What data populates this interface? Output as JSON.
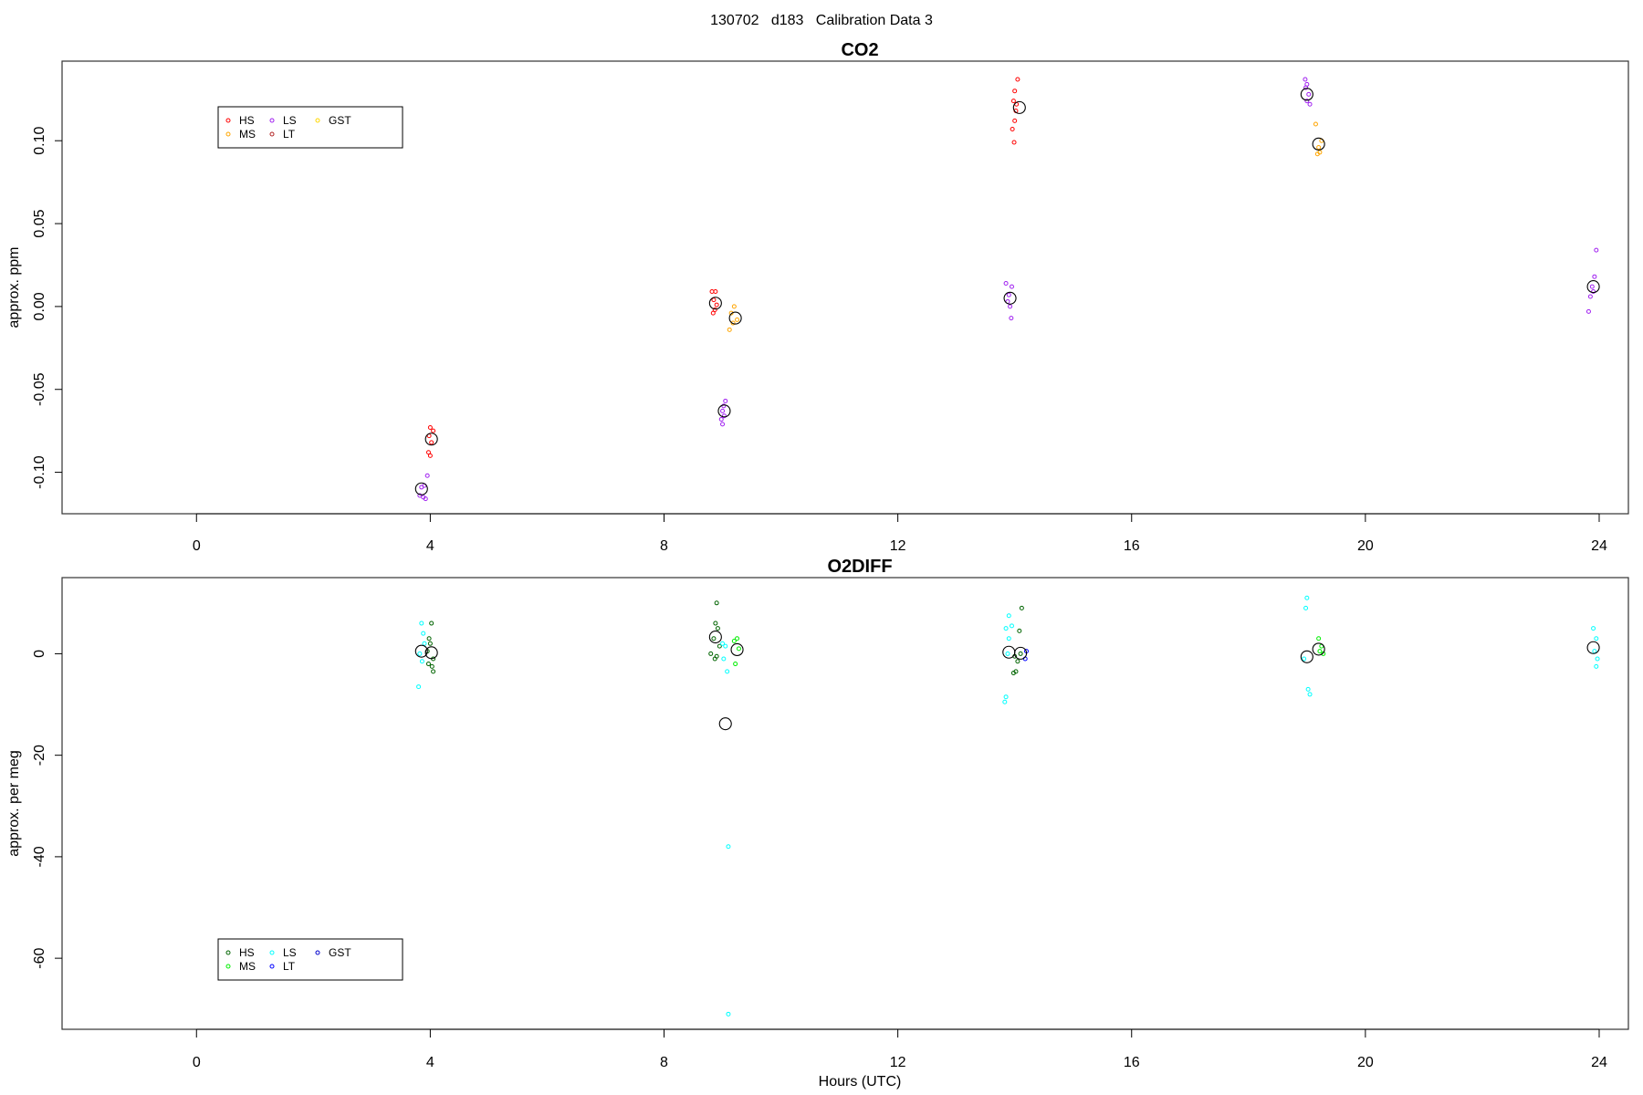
{
  "page_title": "130702   d183   Calibration Data 3",
  "chart_data": [
    {
      "type": "scatter",
      "title": "CO2",
      "xlabel": "",
      "ylabel": "approx. ppm",
      "xlim": [
        -2.3,
        24.5
      ],
      "ylim": [
        -0.125,
        0.148
      ],
      "xticks": [
        0,
        4,
        8,
        12,
        16,
        20,
        24
      ],
      "yticks": [
        -0.1,
        -0.05,
        0.0,
        0.05,
        0.1
      ],
      "ytick_labels": [
        "-0.10",
        "-0.05",
        "0.00",
        "0.05",
        "0.10"
      ],
      "legend_position": "top-left",
      "legend": [
        {
          "name": "HS",
          "color": "#ff0000"
        },
        {
          "name": "MS",
          "color": "#ffa500"
        },
        {
          "name": "LS",
          "color": "#a020f0"
        },
        {
          "name": "LT",
          "color": "#b22222"
        },
        {
          "name": "GST",
          "color": "#ffd700"
        }
      ],
      "series": [
        {
          "name": "HS",
          "color": "#ff0000",
          "points": [
            [
              4.0,
              -0.073
            ],
            [
              4.05,
              -0.075
            ],
            [
              3.98,
              -0.078
            ],
            [
              4.02,
              -0.082
            ],
            [
              3.97,
              -0.088
            ],
            [
              4.0,
              -0.09
            ],
            [
              8.82,
              0.009
            ],
            [
              8.88,
              0.009
            ],
            [
              8.85,
              0.004
            ],
            [
              8.9,
              0.001
            ],
            [
              8.87,
              -0.002
            ],
            [
              8.84,
              -0.004
            ],
            [
              14.05,
              0.137
            ],
            [
              14.0,
              0.13
            ],
            [
              13.98,
              0.124
            ],
            [
              14.03,
              0.122
            ],
            [
              14.02,
              0.118
            ],
            [
              14.0,
              0.112
            ],
            [
              13.96,
              0.107
            ],
            [
              13.99,
              0.099
            ]
          ]
        },
        {
          "name": "MS",
          "color": "#ffa500",
          "points": [
            [
              9.2,
              0.0
            ],
            [
              9.15,
              -0.004
            ],
            [
              9.25,
              -0.008
            ],
            [
              9.18,
              -0.01
            ],
            [
              9.12,
              -0.014
            ],
            [
              19.15,
              0.11
            ],
            [
              19.25,
              0.1
            ],
            [
              19.2,
              0.096
            ],
            [
              19.22,
              0.093
            ],
            [
              19.18,
              0.092
            ]
          ]
        },
        {
          "name": "LS",
          "color": "#a020f0",
          "points": [
            [
              3.85,
              -0.109
            ],
            [
              3.9,
              -0.108
            ],
            [
              3.95,
              -0.102
            ],
            [
              3.82,
              -0.114
            ],
            [
              3.88,
              -0.115
            ],
            [
              3.92,
              -0.116
            ],
            [
              9.05,
              -0.057
            ],
            [
              9.02,
              -0.06
            ],
            [
              9.0,
              -0.063
            ],
            [
              9.03,
              -0.066
            ],
            [
              8.98,
              -0.068
            ],
            [
              9.0,
              -0.071
            ],
            [
              13.85,
              0.014
            ],
            [
              13.95,
              0.012
            ],
            [
              13.9,
              0.007
            ],
            [
              13.88,
              0.003
            ],
            [
              13.92,
              0.0
            ],
            [
              13.94,
              -0.007
            ],
            [
              18.97,
              0.137
            ],
            [
              19.0,
              0.134
            ],
            [
              18.98,
              0.132
            ],
            [
              19.03,
              0.128
            ],
            [
              19.0,
              0.124
            ],
            [
              19.05,
              0.122
            ],
            [
              23.95,
              0.034
            ],
            [
              23.92,
              0.018
            ],
            [
              23.88,
              0.012
            ],
            [
              23.9,
              0.009
            ],
            [
              23.85,
              0.006
            ],
            [
              23.82,
              -0.003
            ]
          ]
        },
        {
          "name": "LT",
          "color": "#b22222",
          "points": []
        },
        {
          "name": "GST",
          "color": "#ffd700",
          "points": []
        },
        {
          "name": "mean",
          "color": "#000000",
          "points": [
            [
              3.85,
              -0.11
            ],
            [
              4.02,
              -0.08
            ],
            [
              8.88,
              0.002
            ],
            [
              9.22,
              -0.007
            ],
            [
              9.03,
              -0.063
            ],
            [
              13.92,
              0.005
            ],
            [
              14.08,
              0.12
            ],
            [
              19.0,
              0.128
            ],
            [
              19.2,
              0.098
            ],
            [
              23.9,
              0.012
            ]
          ]
        }
      ]
    },
    {
      "type": "scatter",
      "title": "O2DIFF",
      "xlabel": "Hours (UTC)",
      "ylabel": "approx. per meg",
      "xlim": [
        -2.3,
        24.5
      ],
      "ylim": [
        -74,
        15
      ],
      "xticks": [
        0,
        4,
        8,
        12,
        16,
        20,
        24
      ],
      "yticks": [
        -60,
        -40,
        -20,
        0
      ],
      "ytick_labels": [
        "-60",
        "-40",
        "-20",
        "0"
      ],
      "legend_position": "bottom-left",
      "legend": [
        {
          "name": "HS",
          "color": "#006400"
        },
        {
          "name": "MS",
          "color": "#00ee00"
        },
        {
          "name": "LS",
          "color": "#00ffff"
        },
        {
          "name": "LT",
          "color": "#0000ff"
        },
        {
          "name": "GST",
          "color": "#0000cd"
        }
      ],
      "series": [
        {
          "name": "HS",
          "color": "#006400",
          "points": [
            [
              4.02,
              6.0
            ],
            [
              3.98,
              3.0
            ],
            [
              4.0,
              2.0
            ],
            [
              3.95,
              0.5
            ],
            [
              4.05,
              -1.0
            ],
            [
              3.97,
              -2.0
            ],
            [
              4.03,
              -2.5
            ],
            [
              4.05,
              -3.5
            ],
            [
              8.9,
              10.0
            ],
            [
              8.88,
              6.0
            ],
            [
              8.92,
              5.0
            ],
            [
              8.85,
              3.0
            ],
            [
              8.95,
              1.5
            ],
            [
              8.8,
              0.0
            ],
            [
              8.9,
              -0.5
            ],
            [
              8.87,
              -1.0
            ],
            [
              14.12,
              9.0
            ],
            [
              14.08,
              4.5
            ],
            [
              14.1,
              0.0
            ],
            [
              14.0,
              -0.5
            ],
            [
              14.05,
              -1.5
            ],
            [
              14.02,
              -3.5
            ],
            [
              13.98,
              -3.8
            ]
          ]
        },
        {
          "name": "MS",
          "color": "#00ee00",
          "points": [
            [
              9.25,
              3.0
            ],
            [
              9.2,
              2.5
            ],
            [
              9.28,
              1.0
            ],
            [
              9.22,
              -2.0
            ],
            [
              19.2,
              3.0
            ],
            [
              19.25,
              1.5
            ],
            [
              19.22,
              0.5
            ],
            [
              19.28,
              0.0
            ]
          ]
        },
        {
          "name": "LS",
          "color": "#00ffff",
          "points": [
            [
              3.85,
              6.0
            ],
            [
              3.88,
              4.0
            ],
            [
              3.9,
              2.0
            ],
            [
              3.82,
              0.0
            ],
            [
              3.86,
              -1.5
            ],
            [
              3.8,
              -6.5
            ],
            [
              9.0,
              2.0
            ],
            [
              9.05,
              1.5
            ],
            [
              9.02,
              -1.0
            ],
            [
              9.08,
              -3.5
            ],
            [
              9.1,
              -38.0
            ],
            [
              9.1,
              -71.0
            ],
            [
              13.9,
              7.5
            ],
            [
              13.95,
              5.5
            ],
            [
              13.85,
              5.0
            ],
            [
              13.9,
              3.0
            ],
            [
              13.88,
              0.0
            ],
            [
              13.85,
              -8.5
            ],
            [
              13.83,
              -9.5
            ],
            [
              19.0,
              11.0
            ],
            [
              18.98,
              9.0
            ],
            [
              18.95,
              -1.0
            ],
            [
              19.02,
              -7.0
            ],
            [
              19.05,
              -8.0
            ],
            [
              23.9,
              5.0
            ],
            [
              23.95,
              3.0
            ],
            [
              23.92,
              0.5
            ],
            [
              23.97,
              -1.0
            ],
            [
              23.95,
              -2.5
            ]
          ]
        },
        {
          "name": "LT",
          "color": "#0000ff",
          "points": [
            [
              14.2,
              0.5
            ],
            [
              14.18,
              -1.0
            ]
          ]
        },
        {
          "name": "GST",
          "color": "#0000cd",
          "points": []
        },
        {
          "name": "mean",
          "color": "#000000",
          "points": [
            [
              3.85,
              0.5
            ],
            [
              4.02,
              0.2
            ],
            [
              8.88,
              3.3
            ],
            [
              9.25,
              0.8
            ],
            [
              9.05,
              -13.8
            ],
            [
              13.9,
              0.3
            ],
            [
              14.1,
              0.1
            ],
            [
              19.0,
              -0.6
            ],
            [
              19.2,
              0.9
            ],
            [
              23.9,
              1.2
            ]
          ]
        }
      ]
    }
  ]
}
